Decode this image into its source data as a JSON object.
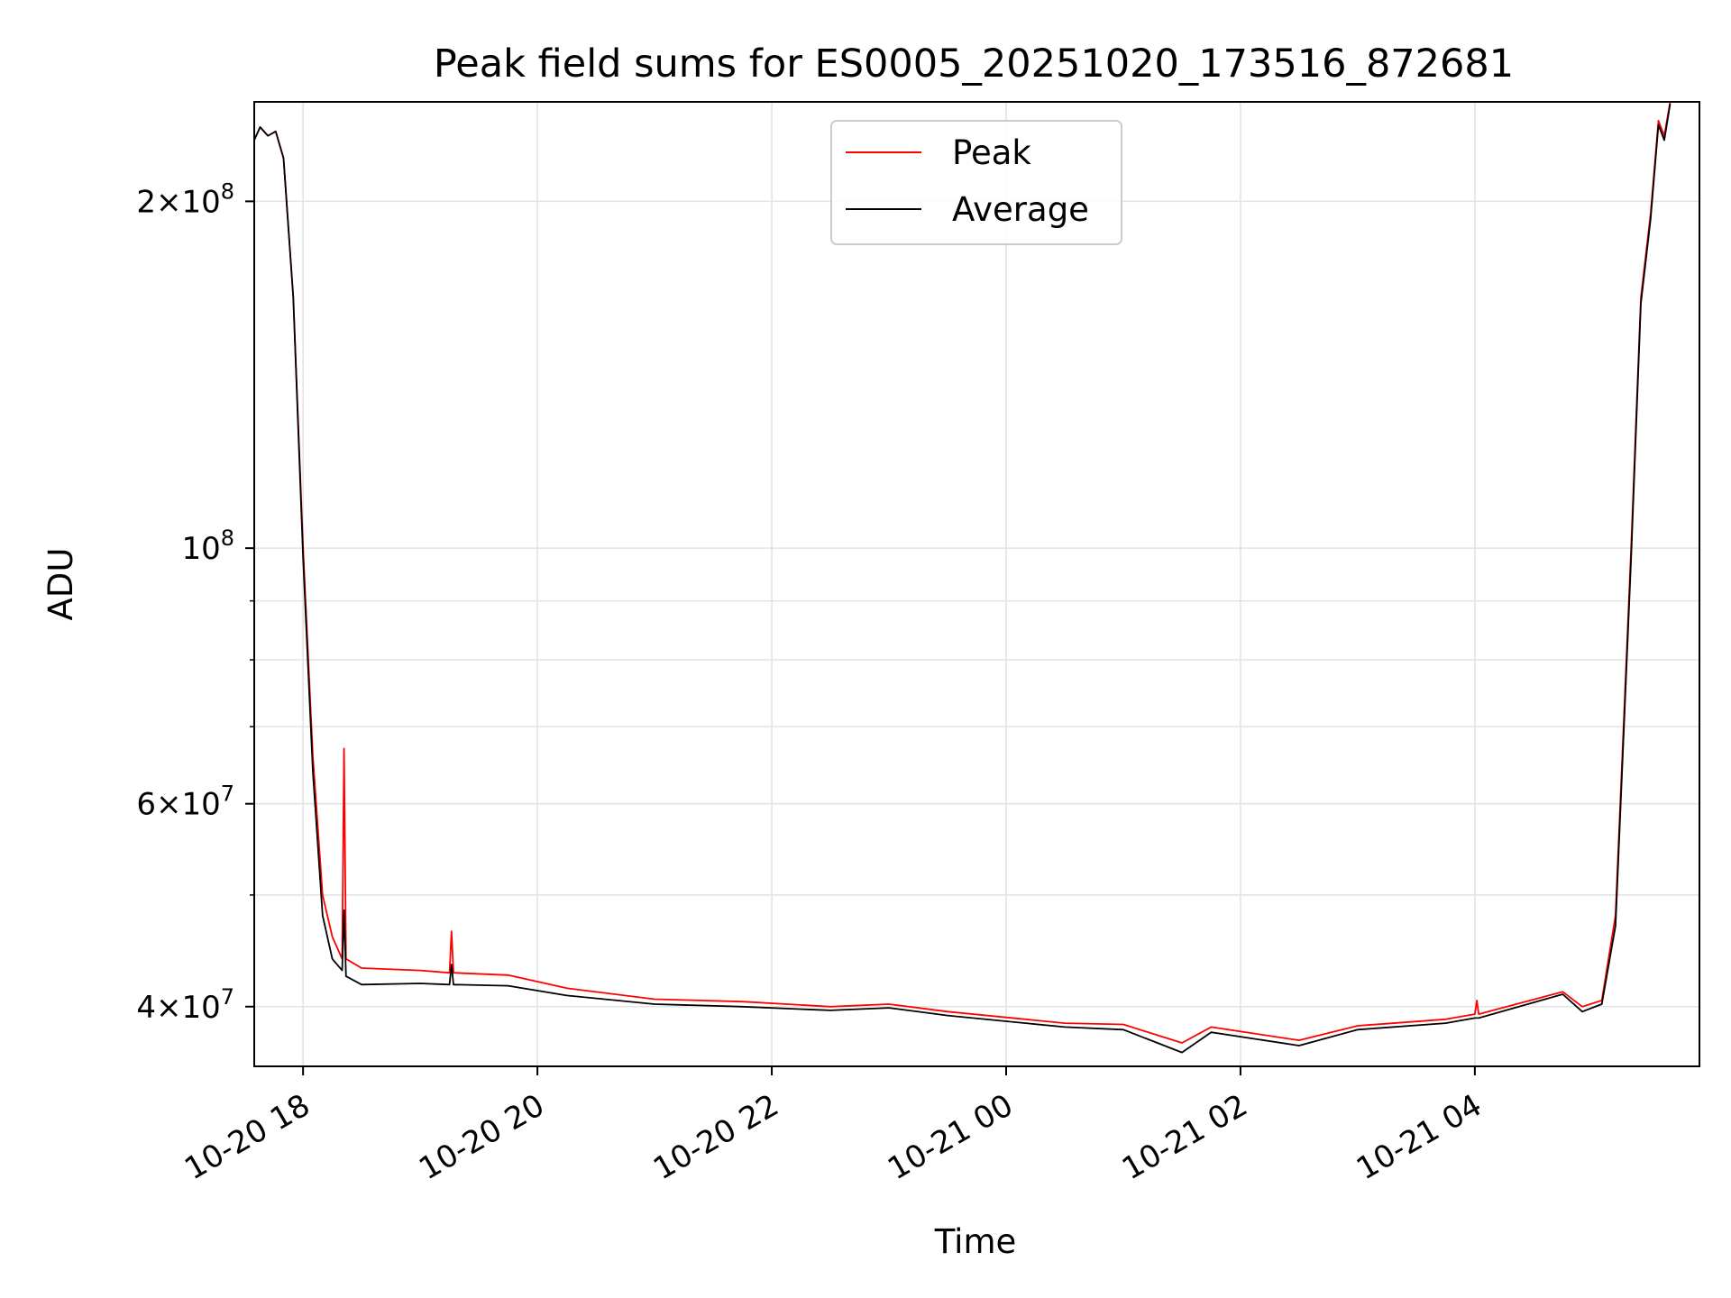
{
  "chart_data": {
    "type": "line",
    "title": "Peak field sums for ES0005_20251020_173516_872681",
    "xlabel": "Time",
    "ylabel": "ADU",
    "y_scale": "log",
    "grid": true,
    "legend_position": "upper center",
    "x_range": [
      "2025-10-20 17:35",
      "2025-10-21 05:55"
    ],
    "ylim": [
      35500000,
      244000000
    ],
    "x_ticks": [
      {
        "t": "2025-10-20 18:00",
        "label": "10-20 18"
      },
      {
        "t": "2025-10-20 20:00",
        "label": "10-20 20"
      },
      {
        "t": "2025-10-20 22:00",
        "label": "10-20 22"
      },
      {
        "t": "2025-10-21 00:00",
        "label": "10-21 00"
      },
      {
        "t": "2025-10-21 02:00",
        "label": "10-21 02"
      },
      {
        "t": "2025-10-21 04:00",
        "label": "10-21 04"
      }
    ],
    "y_major_ticks": [
      {
        "value": 40000000,
        "mantissa": "4",
        "exp": "7"
      },
      {
        "value": 60000000,
        "mantissa": "6",
        "exp": "7"
      },
      {
        "value": 100000000,
        "mantissa": "",
        "exp": "8"
      },
      {
        "value": 200000000,
        "mantissa": "2",
        "exp": "8"
      }
    ],
    "y_minor_grid": [
      50000000,
      70000000,
      80000000,
      90000000
    ],
    "series": [
      {
        "name": "Peak",
        "color": "#ff0000",
        "points": [
          [
            "2025-10-20 17:35",
            226000000
          ],
          [
            "2025-10-20 17:38",
            232000000
          ],
          [
            "2025-10-20 17:42",
            228000000
          ],
          [
            "2025-10-20 17:46",
            230000000
          ],
          [
            "2025-10-20 17:50",
            218000000
          ],
          [
            "2025-10-20 17:55",
            165000000
          ],
          [
            "2025-10-20 18:00",
            100000000
          ],
          [
            "2025-10-20 18:05",
            66000000
          ],
          [
            "2025-10-20 18:10",
            50000000
          ],
          [
            "2025-10-20 18:15",
            46000000
          ],
          [
            "2025-10-20 18:20",
            44000000
          ],
          [
            "2025-10-20 18:21",
            67000000
          ],
          [
            "2025-10-20 18:22",
            44000000
          ],
          [
            "2025-10-20 18:30",
            43200000
          ],
          [
            "2025-10-20 19:00",
            43000000
          ],
          [
            "2025-10-20 19:15",
            42800000
          ],
          [
            "2025-10-20 19:16",
            46500000
          ],
          [
            "2025-10-20 19:17",
            42800000
          ],
          [
            "2025-10-20 19:45",
            42600000
          ],
          [
            "2025-10-20 20:15",
            41500000
          ],
          [
            "2025-10-20 21:00",
            40600000
          ],
          [
            "2025-10-20 21:45",
            40400000
          ],
          [
            "2025-10-20 22:30",
            40000000
          ],
          [
            "2025-10-20 23:00",
            40200000
          ],
          [
            "2025-10-20 23:30",
            39600000
          ],
          [
            "2025-10-21 00:30",
            38700000
          ],
          [
            "2025-10-21 01:00",
            38600000
          ],
          [
            "2025-10-21 01:30",
            37200000
          ],
          [
            "2025-10-21 01:45",
            38400000
          ],
          [
            "2025-10-21 02:30",
            37400000
          ],
          [
            "2025-10-21 03:00",
            38500000
          ],
          [
            "2025-10-21 03:45",
            39000000
          ],
          [
            "2025-10-21 04:00",
            39400000
          ],
          [
            "2025-10-21 04:01",
            40500000
          ],
          [
            "2025-10-21 04:02",
            39400000
          ],
          [
            "2025-10-21 04:45",
            41200000
          ],
          [
            "2025-10-21 04:55",
            40000000
          ],
          [
            "2025-10-21 05:05",
            40500000
          ],
          [
            "2025-10-21 05:12",
            48000000
          ],
          [
            "2025-10-21 05:20",
            100000000
          ],
          [
            "2025-10-21 05:25",
            165000000
          ],
          [
            "2025-10-21 05:30",
            195000000
          ],
          [
            "2025-10-21 05:34",
            235000000
          ],
          [
            "2025-10-21 05:37",
            228000000
          ],
          [
            "2025-10-21 05:40",
            244000000
          ]
        ]
      },
      {
        "name": "Average",
        "color": "#000000",
        "points": [
          [
            "2025-10-20 17:35",
            226000000
          ],
          [
            "2025-10-20 17:38",
            232000000
          ],
          [
            "2025-10-20 17:42",
            228000000
          ],
          [
            "2025-10-20 17:46",
            230000000
          ],
          [
            "2025-10-20 17:50",
            218000000
          ],
          [
            "2025-10-20 17:55",
            165000000
          ],
          [
            "2025-10-20 18:00",
            98000000
          ],
          [
            "2025-10-20 18:05",
            64000000
          ],
          [
            "2025-10-20 18:10",
            48000000
          ],
          [
            "2025-10-20 18:15",
            44000000
          ],
          [
            "2025-10-20 18:20",
            43000000
          ],
          [
            "2025-10-20 18:21",
            48500000
          ],
          [
            "2025-10-20 18:22",
            42500000
          ],
          [
            "2025-10-20 18:30",
            41800000
          ],
          [
            "2025-10-20 19:00",
            41900000
          ],
          [
            "2025-10-20 19:15",
            41800000
          ],
          [
            "2025-10-20 19:16",
            43500000
          ],
          [
            "2025-10-20 19:17",
            41800000
          ],
          [
            "2025-10-20 19:45",
            41700000
          ],
          [
            "2025-10-20 20:15",
            40900000
          ],
          [
            "2025-10-20 21:00",
            40200000
          ],
          [
            "2025-10-20 21:45",
            40000000
          ],
          [
            "2025-10-20 22:30",
            39700000
          ],
          [
            "2025-10-20 23:00",
            39900000
          ],
          [
            "2025-10-20 23:30",
            39300000
          ],
          [
            "2025-10-21 00:30",
            38400000
          ],
          [
            "2025-10-21 01:00",
            38200000
          ],
          [
            "2025-10-21 01:30",
            36500000
          ],
          [
            "2025-10-21 01:45",
            38000000
          ],
          [
            "2025-10-21 02:30",
            37000000
          ],
          [
            "2025-10-21 03:00",
            38200000
          ],
          [
            "2025-10-21 03:45",
            38700000
          ],
          [
            "2025-10-21 04:00",
            39100000
          ],
          [
            "2025-10-21 04:01",
            39100000
          ],
          [
            "2025-10-21 04:02",
            39100000
          ],
          [
            "2025-10-21 04:45",
            41000000
          ],
          [
            "2025-10-21 04:55",
            39600000
          ],
          [
            "2025-10-21 05:05",
            40200000
          ],
          [
            "2025-10-21 05:12",
            47000000
          ],
          [
            "2025-10-21 05:20",
            98000000
          ],
          [
            "2025-10-21 05:25",
            163000000
          ],
          [
            "2025-10-21 05:30",
            193000000
          ],
          [
            "2025-10-21 05:34",
            233000000
          ],
          [
            "2025-10-21 05:37",
            226000000
          ],
          [
            "2025-10-21 05:40",
            243000000
          ]
        ]
      }
    ]
  }
}
